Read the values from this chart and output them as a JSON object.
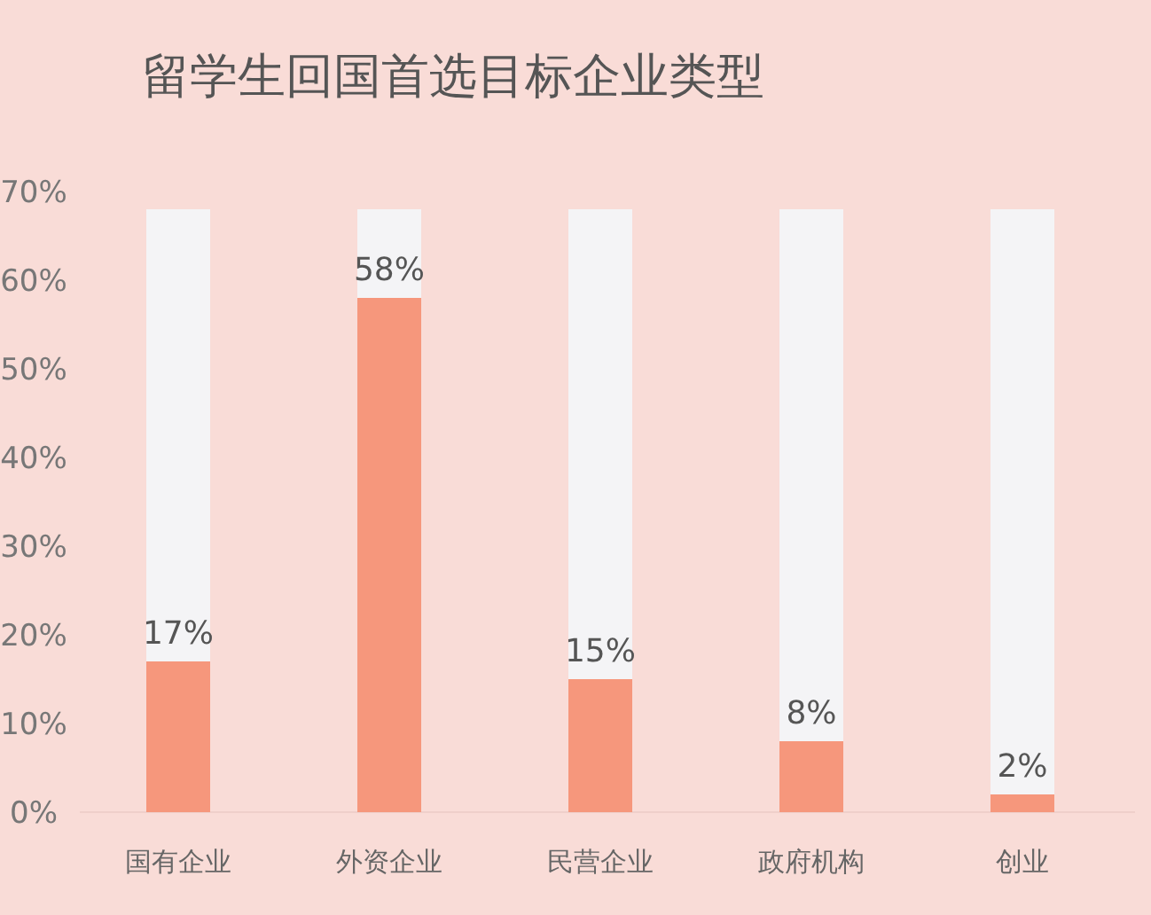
{
  "chart_data": {
    "type": "bar",
    "title": "留学生回国首选目标企业类型",
    "categories": [
      "国有企业",
      "外资企业",
      "民营企业",
      "政府机构",
      "创业"
    ],
    "stacked": true,
    "series": [
      {
        "color": "#f6977c",
        "values": [
          17,
          58,
          15,
          8,
          2
        ],
        "value_labels": [
          "17%",
          "58%",
          "15%",
          "8%",
          "2%"
        ]
      },
      {
        "color": "#f4f4f6",
        "values": [
          51,
          10,
          53,
          60,
          66
        ]
      }
    ],
    "ylim": [
      0,
      70
    ],
    "yticks": [
      {
        "value": 0,
        "label": "0%"
      },
      {
        "value": 10,
        "label": "10%"
      },
      {
        "value": 20,
        "label": "20%"
      },
      {
        "value": 30,
        "label": "30%"
      },
      {
        "value": 40,
        "label": "40%"
      },
      {
        "value": 50,
        "label": "50%"
      },
      {
        "value": 60,
        "label": "60%"
      },
      {
        "value": 70,
        "label": "70%"
      }
    ],
    "grid": false
  }
}
